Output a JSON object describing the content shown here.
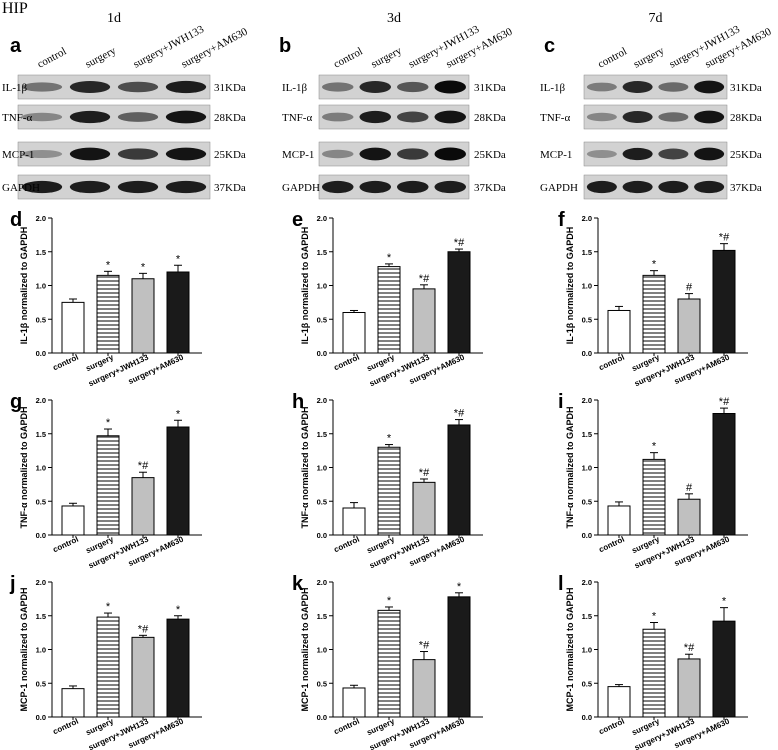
{
  "figure_title": "HIP",
  "blot_panels": [
    {
      "letter": "a",
      "time": "1d",
      "lanes": [
        "control",
        "surgery",
        "surgery+JWH133",
        "surgery+AM630"
      ],
      "rows": [
        {
          "label": "IL-1β",
          "size": "31KDa",
          "intensity": [
            0.45,
            0.85,
            0.65,
            0.9
          ]
        },
        {
          "label": "TNF-α",
          "size": "28KDa",
          "intensity": [
            0.35,
            0.9,
            0.55,
            0.95
          ]
        },
        {
          "label": "MCP-1",
          "size": "25KDa",
          "intensity": [
            0.3,
            0.95,
            0.75,
            0.95
          ]
        },
        {
          "label": "GAPDH",
          "size": "37KDa",
          "intensity": [
            0.9,
            0.9,
            0.9,
            0.9
          ]
        }
      ]
    },
    {
      "letter": "b",
      "time": "3d",
      "lanes": [
        "control",
        "surgery",
        "surgery+JWH133",
        "surgery+AM630"
      ],
      "rows": [
        {
          "label": "IL-1β",
          "size": "31KDa",
          "intensity": [
            0.45,
            0.85,
            0.6,
            1.0
          ]
        },
        {
          "label": "TNF-α",
          "size": "28KDa",
          "intensity": [
            0.4,
            0.9,
            0.7,
            0.95
          ]
        },
        {
          "label": "MCP-1",
          "size": "25KDa",
          "intensity": [
            0.35,
            0.95,
            0.75,
            1.0
          ]
        },
        {
          "label": "GAPDH",
          "size": "37KDa",
          "intensity": [
            0.9,
            0.9,
            0.9,
            0.9
          ]
        }
      ]
    },
    {
      "letter": "c",
      "time": "7d",
      "lanes": [
        "control",
        "surgery",
        "surgery+JWH133",
        "surgery+AM630"
      ],
      "rows": [
        {
          "label": "IL-1β",
          "size": "31KDa",
          "intensity": [
            0.4,
            0.85,
            0.5,
            0.95
          ]
        },
        {
          "label": "TNF-α",
          "size": "28KDa",
          "intensity": [
            0.35,
            0.85,
            0.5,
            0.95
          ]
        },
        {
          "label": "MCP-1",
          "size": "25KDa",
          "intensity": [
            0.3,
            0.9,
            0.7,
            0.95
          ]
        },
        {
          "label": "GAPDH",
          "size": "37KDa",
          "intensity": [
            0.9,
            0.9,
            0.9,
            0.9
          ]
        }
      ]
    }
  ],
  "colors": {
    "control": "#ffffff",
    "surgery": "#ffffff",
    "surgery+JWH133": "#c0c0c0",
    "surgery+AM630": "#1a1a1a",
    "axis": "#000000",
    "blot_bg": "#d2d2d2"
  },
  "chart_data": [
    {
      "letter": "d",
      "type": "bar",
      "ylabel": "IL-1β normalized to GAPDH",
      "ylim": [
        0,
        2.0
      ],
      "yticks": [
        "0.0",
        "0.5",
        "1.0",
        "1.5",
        "2.0"
      ],
      "categories": [
        "control",
        "surgery",
        "surgery+JWH133",
        "surgery+AM630"
      ],
      "values": [
        0.75,
        1.15,
        1.1,
        1.2
      ],
      "errors": [
        0.05,
        0.06,
        0.08,
        0.1
      ],
      "marks": [
        "",
        "*",
        "*",
        "*"
      ]
    },
    {
      "letter": "e",
      "type": "bar",
      "ylabel": "IL-1β normalized to GAPDH",
      "ylim": [
        0,
        2.0
      ],
      "yticks": [
        "0.0",
        "0.5",
        "1.0",
        "1.5",
        "2.0"
      ],
      "categories": [
        "control",
        "surgery",
        "surgery+JWH133",
        "surgery+AM630"
      ],
      "values": [
        0.6,
        1.28,
        0.95,
        1.5
      ],
      "errors": [
        0.03,
        0.04,
        0.06,
        0.04
      ],
      "marks": [
        "",
        "*",
        "*#",
        "*#"
      ]
    },
    {
      "letter": "f",
      "type": "bar",
      "ylabel": "IL-1β normalized to GAPDH",
      "ylim": [
        0,
        2.0
      ],
      "yticks": [
        "0.0",
        "0.5",
        "1.0",
        "1.5",
        "2.0"
      ],
      "categories": [
        "control",
        "surgery",
        "surgery+JWH133",
        "surgery+AM630"
      ],
      "values": [
        0.63,
        1.15,
        0.8,
        1.52
      ],
      "errors": [
        0.06,
        0.07,
        0.08,
        0.1
      ],
      "marks": [
        "",
        "*",
        "#",
        "*#"
      ]
    },
    {
      "letter": "g",
      "type": "bar",
      "ylabel": "TNF-α normalized to GAPDH",
      "ylim": [
        0,
        2.0
      ],
      "yticks": [
        "0.0",
        "0.5",
        "1.0",
        "1.5",
        "2.0"
      ],
      "categories": [
        "control",
        "surgery",
        "surgery+JWH133",
        "surgery+AM630"
      ],
      "values": [
        0.43,
        1.47,
        0.85,
        1.6
      ],
      "errors": [
        0.04,
        0.1,
        0.08,
        0.1
      ],
      "marks": [
        "",
        "*",
        "*#",
        "*"
      ]
    },
    {
      "letter": "h",
      "type": "bar",
      "ylabel": "TNF-α normalized to GAPDH",
      "ylim": [
        0,
        2.0
      ],
      "yticks": [
        "0.0",
        "0.5",
        "1.0",
        "1.5",
        "2.0"
      ],
      "categories": [
        "control",
        "surgery",
        "surgery+JWH133",
        "surgery+AM630"
      ],
      "values": [
        0.4,
        1.3,
        0.78,
        1.63
      ],
      "errors": [
        0.08,
        0.04,
        0.05,
        0.08
      ],
      "marks": [
        "",
        "*",
        "*#",
        "*#"
      ]
    },
    {
      "letter": "i",
      "type": "bar",
      "ylabel": "TNF-α normalized to GAPDH",
      "ylim": [
        0,
        2.0
      ],
      "yticks": [
        "0.0",
        "0.5",
        "1.0",
        "1.5",
        "2.0"
      ],
      "categories": [
        "control",
        "surgery",
        "surgery+JWH133",
        "surgery+AM630"
      ],
      "values": [
        0.43,
        1.12,
        0.53,
        1.8
      ],
      "errors": [
        0.06,
        0.1,
        0.08,
        0.08
      ],
      "marks": [
        "",
        "*",
        "#",
        "*#"
      ]
    },
    {
      "letter": "j",
      "type": "bar",
      "ylabel": "MCP-1 normalized to GAPDH",
      "ylim": [
        0,
        2.0
      ],
      "yticks": [
        "0.0",
        "0.5",
        "1.0",
        "1.5",
        "2.0"
      ],
      "categories": [
        "control",
        "surgery",
        "surgery+JWH133",
        "surgery+AM630"
      ],
      "values": [
        0.42,
        1.48,
        1.18,
        1.45
      ],
      "errors": [
        0.04,
        0.06,
        0.03,
        0.05
      ],
      "marks": [
        "",
        "*",
        "*#",
        "*"
      ]
    },
    {
      "letter": "k",
      "type": "bar",
      "ylabel": "MCP-1 normalized to GAPDH",
      "ylim": [
        0,
        2.0
      ],
      "yticks": [
        "0.0",
        "0.5",
        "1.0",
        "1.5",
        "2.0"
      ],
      "categories": [
        "control",
        "surgery",
        "surgery+JWH133",
        "surgery+AM630"
      ],
      "values": [
        0.43,
        1.58,
        0.85,
        1.78
      ],
      "errors": [
        0.04,
        0.05,
        0.12,
        0.06
      ],
      "marks": [
        "",
        "*",
        "*#",
        "*"
      ]
    },
    {
      "letter": "l",
      "type": "bar",
      "ylabel": "MCP-1 normalized to GAPDH",
      "ylim": [
        0,
        2.0
      ],
      "yticks": [
        "0.0",
        "0.5",
        "1.0",
        "1.5",
        "2.0"
      ],
      "categories": [
        "control",
        "surgery",
        "surgery+JWH133",
        "surgery+AM630"
      ],
      "values": [
        0.45,
        1.3,
        0.86,
        1.42
      ],
      "errors": [
        0.03,
        0.1,
        0.07,
        0.2
      ],
      "marks": [
        "",
        "*",
        "*#",
        "*"
      ]
    }
  ]
}
